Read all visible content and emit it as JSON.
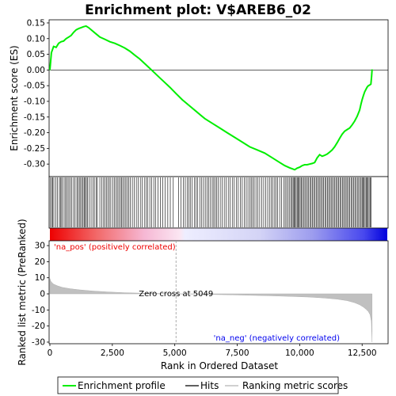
{
  "chart_data": {
    "type": "line",
    "title": "Enrichment plot: V$AREB6_02",
    "x_label": "Rank in Ordered Dataset",
    "es_panel": {
      "y_label": "Enrichment score (ES)",
      "ylim": [
        -0.34,
        0.16
      ],
      "yticks": [
        0.15,
        0.1,
        0.05,
        0.0,
        -0.05,
        -0.1,
        -0.15,
        -0.2,
        -0.25,
        -0.3
      ],
      "ytick_labels": [
        "0.15",
        "0.10",
        "0.05",
        "0.00",
        "-0.05",
        "-0.10",
        "-0.15",
        "-0.20",
        "-0.25",
        "-0.30"
      ],
      "series": {
        "name": "Enrichment profile",
        "color": "#00ee00",
        "x": [
          0,
          60,
          150,
          250,
          350,
          450,
          550,
          650,
          750,
          850,
          950,
          1050,
          1150,
          1250,
          1350,
          1450,
          1550,
          1700,
          1850,
          2000,
          2200,
          2400,
          2600,
          2800,
          3000,
          3200,
          3400,
          3600,
          3800,
          4000,
          4200,
          4400,
          4600,
          4800,
          5049,
          5300,
          5600,
          5900,
          6200,
          6500,
          6800,
          7100,
          7400,
          7700,
          8000,
          8300,
          8600,
          8900,
          9200,
          9400,
          9600,
          9700,
          9800,
          9900,
          10000,
          10100,
          10200,
          10300,
          10400,
          10500,
          10600,
          10700,
          10800,
          10900,
          11000,
          11100,
          11200,
          11300,
          11400,
          11500,
          11600,
          11700,
          11800,
          11900,
          12000,
          12100,
          12200,
          12300,
          12400,
          12450,
          12500,
          12550,
          12600,
          12650,
          12700,
          12750,
          12800,
          12850,
          12880,
          12900
        ],
        "y": [
          0.0,
          0.055,
          0.075,
          0.072,
          0.085,
          0.09,
          0.092,
          0.1,
          0.105,
          0.11,
          0.12,
          0.128,
          0.132,
          0.135,
          0.138,
          0.14,
          0.135,
          0.125,
          0.115,
          0.105,
          0.098,
          0.09,
          0.085,
          0.078,
          0.07,
          0.06,
          0.047,
          0.035,
          0.02,
          0.005,
          -0.01,
          -0.025,
          -0.04,
          -0.055,
          -0.075,
          -0.095,
          -0.115,
          -0.135,
          -0.155,
          -0.17,
          -0.185,
          -0.2,
          -0.215,
          -0.23,
          -0.245,
          -0.255,
          -0.265,
          -0.28,
          -0.295,
          -0.305,
          -0.312,
          -0.315,
          -0.318,
          -0.313,
          -0.31,
          -0.305,
          -0.302,
          -0.302,
          -0.3,
          -0.298,
          -0.295,
          -0.28,
          -0.27,
          -0.275,
          -0.272,
          -0.268,
          -0.262,
          -0.255,
          -0.245,
          -0.232,
          -0.218,
          -0.205,
          -0.195,
          -0.19,
          -0.185,
          -0.175,
          -0.163,
          -0.148,
          -0.128,
          -0.11,
          -0.095,
          -0.082,
          -0.07,
          -0.062,
          -0.055,
          -0.05,
          -0.048,
          -0.045,
          -0.02,
          0.002
        ]
      }
    },
    "hits": {
      "name": "Hits",
      "color": "#000000",
      "positions": [
        25,
        70,
        110,
        160,
        240,
        300,
        380,
        420,
        470,
        520,
        600,
        640,
        700,
        760,
        820,
        880,
        950,
        1010,
        1080,
        1120,
        1180,
        1230,
        1290,
        1330,
        1380,
        1420,
        1460,
        1510,
        1580,
        1650,
        1720,
        1780,
        1850,
        1900,
        2000,
        2080,
        2150,
        2200,
        2260,
        2320,
        2380,
        2440,
        2520,
        2580,
        2640,
        2700,
        2760,
        2820,
        2870,
        2920,
        2980,
        3040,
        3100,
        3150,
        3220,
        3300,
        3380,
        3460,
        3540,
        3620,
        3700,
        3780,
        3850,
        3920,
        4000,
        4080,
        4160,
        4240,
        4330,
        4420,
        4520,
        4620,
        4720,
        4820,
        4940,
        5150,
        5250,
        5340,
        5420,
        5500,
        5560,
        5620,
        5700,
        5780,
        5850,
        5920,
        6000,
        6080,
        6150,
        6220,
        6290,
        6360,
        6430,
        6500,
        6560,
        6620,
        6680,
        6740,
        6820,
        6900,
        6980,
        7060,
        7140,
        7220,
        7300,
        7380,
        7460,
        7540,
        7620,
        7700,
        7780,
        7860,
        7930,
        8000,
        8060,
        8120,
        8180,
        8250,
        8320,
        8400,
        8480,
        8560,
        8640,
        8720,
        8790,
        8860,
        8930,
        9000,
        9060,
        9120,
        9200,
        9280,
        9360,
        9420,
        9480,
        9540,
        9600,
        9650,
        9700,
        9740,
        9780,
        9820,
        9860,
        9900,
        9940,
        9980,
        10020,
        10060,
        10110,
        10160,
        10210,
        10260,
        10310,
        10360,
        10410,
        10460,
        10510,
        10560,
        10610,
        10660,
        10710,
        10760,
        10810,
        10860,
        10910,
        10960,
        11010,
        11060,
        11110,
        11160,
        11210,
        11260,
        11310,
        11360,
        11410,
        11460,
        11510,
        11560,
        11610,
        11660,
        11710,
        11760,
        11810,
        11860,
        11910,
        11960,
        12010,
        12060,
        12110,
        12160,
        12210,
        12260,
        12310,
        12360,
        12410,
        12460,
        12500,
        12540,
        12580,
        12620,
        12660,
        12700,
        12740,
        12780,
        12820,
        12860
      ]
    },
    "metric_panel": {
      "y_label": "Ranked list metric (PreRanked)",
      "ylim": [
        -31,
        33
      ],
      "yticks": [
        30,
        20,
        10,
        0,
        -10,
        -20,
        -30
      ],
      "ytick_labels": [
        "30",
        "20",
        "10",
        "0",
        "-10",
        "-20",
        "-30"
      ],
      "series": {
        "name": "Ranking metric scores",
        "color": "#c0c0c0",
        "x": [
          0,
          30,
          80,
          150,
          300,
          500,
          800,
          1200,
          1700,
          2300,
          3000,
          3700,
          4400,
          5049,
          5700,
          6500,
          7300,
          8100,
          8900,
          9700,
          10400,
          11000,
          11500,
          11900,
          12200,
          12400,
          12550,
          12650,
          12750,
          12820,
          12870,
          12900
        ],
        "y": [
          9.5,
          8.0,
          7.0,
          6.0,
          5.0,
          4.0,
          3.2,
          2.5,
          1.8,
          1.2,
          0.7,
          0.4,
          0.2,
          0.0,
          -0.2,
          -0.4,
          -0.6,
          -0.9,
          -1.2,
          -1.6,
          -2.0,
          -2.6,
          -3.3,
          -4.2,
          -5.5,
          -6.8,
          -8.2,
          -9.5,
          -11.0,
          -13.0,
          -17.0,
          -30.0
        ]
      }
    },
    "x_range": [
      0,
      13000
    ],
    "xticks": [
      0,
      2500,
      5000,
      7500,
      10000,
      12500
    ],
    "xtick_labels": [
      "0",
      "2,500",
      "5,000",
      "7,500",
      "10,000",
      "12,500"
    ],
    "zero_cross": 5049,
    "annotations": {
      "pos": "'na_pos' (positively correlated)",
      "neg": "'na_neg' (negatively correlated)",
      "zero_cross": "Zero cross at 5049"
    },
    "colors": {
      "pos": "#ee0000",
      "neg": "#0000ee",
      "enrichment": "#00ee00",
      "metric": "#c0c0c0"
    },
    "legend": {
      "placement": "bottom",
      "entries": [
        "Enrichment profile",
        "Hits",
        "Ranking metric scores"
      ]
    }
  }
}
